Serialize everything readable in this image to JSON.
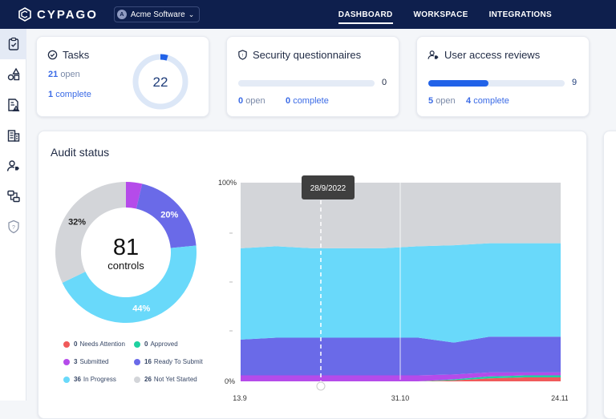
{
  "app": {
    "brand": "CYPAGO",
    "org_initial": "A",
    "org_name": "Acme Software"
  },
  "nav": [
    {
      "label": "DASHBOARD",
      "active": true
    },
    {
      "label": "WORKSPACE",
      "active": false
    },
    {
      "label": "INTEGRATIONS",
      "active": false
    }
  ],
  "sidebar": [
    "clipboard-check-icon",
    "shapes-icon",
    "document-alert-icon",
    "building-list-icon",
    "user-review-icon",
    "workflow-icon",
    "shield-question-icon"
  ],
  "tasks": {
    "title": "Tasks",
    "open_num": "21",
    "open_lbl": "open",
    "complete_num": "1",
    "complete_lbl": "complete",
    "total": "22",
    "complete_fraction": 0.045
  },
  "questionnaires": {
    "title": "Security questionnaires",
    "count": "0",
    "open_num": "0",
    "open_lbl": "open",
    "complete_num": "0",
    "complete_lbl": "complete",
    "progress": 0
  },
  "reviews": {
    "title": "User access reviews",
    "count": "9",
    "open_num": "5",
    "open_lbl": "open",
    "complete_num": "4",
    "complete_lbl": "complete",
    "progress": 0.44
  },
  "audit": {
    "title": "Audit status",
    "total": "81",
    "total_lbl": "controls",
    "donut": [
      {
        "name": "Submitted",
        "value": 3,
        "color": "#b54bea",
        "label": ""
      },
      {
        "name": "Ready To Submit",
        "value": 16,
        "color": "#6a6ae8",
        "label": "20%"
      },
      {
        "name": "In Progress",
        "value": 36,
        "color": "#69d9fa",
        "label": "44%"
      },
      {
        "name": "Not Yet Started",
        "value": 26,
        "color": "#d3d5d9",
        "label": "32%"
      }
    ],
    "legend": [
      {
        "num": "0",
        "name": "Needs Attention",
        "color": "#f05a5a"
      },
      {
        "num": "0",
        "name": "Approved",
        "color": "#1fd1a0"
      },
      {
        "num": "3",
        "name": "Submitted",
        "color": "#b54bea"
      },
      {
        "num": "16",
        "name": "Ready To Submit",
        "color": "#6a6ae8"
      },
      {
        "num": "36",
        "name": "In Progress",
        "color": "#69d9fa"
      },
      {
        "num": "26",
        "name": "Not Yet Started",
        "color": "#d3d5d9"
      }
    ]
  },
  "chart_data": {
    "type": "area",
    "stacked": true,
    "normalized_percent": true,
    "ylim": [
      0,
      100
    ],
    "ytick_labels": [
      "100%",
      "0%"
    ],
    "xtick_labels": [
      "13.9",
      "31.10",
      "24.11"
    ],
    "tooltip": "28/9/2022",
    "x": [
      "13.9",
      "20.9",
      "28.9",
      "5.10",
      "13.10",
      "21.10",
      "31.10",
      "8.11",
      "16.11",
      "24.11"
    ],
    "series": [
      {
        "name": "Needs Attention",
        "color": "#f05a5a",
        "values": [
          0,
          0,
          0,
          0,
          0,
          0,
          0.5,
          1.5,
          2,
          2
        ]
      },
      {
        "name": "Approved",
        "color": "#1fd1a0",
        "values": [
          0,
          0,
          0,
          0,
          0,
          0,
          0.5,
          1,
          1,
          1
        ]
      },
      {
        "name": "Submitted",
        "color": "#b54bea",
        "values": [
          3,
          3,
          3,
          3,
          3,
          3,
          2.5,
          2,
          1.5,
          1.5
        ]
      },
      {
        "name": "Ready To Submit",
        "color": "#6a6ae8",
        "values": [
          18,
          19,
          19,
          19,
          19,
          19,
          16,
          18,
          18,
          18
        ]
      },
      {
        "name": "In Progress",
        "color": "#69d9fa",
        "values": [
          46,
          46,
          45,
          45,
          45,
          46,
          49,
          47,
          47,
          47
        ]
      },
      {
        "name": "Not Yet Started",
        "color": "#d3d5d9",
        "values": [
          33,
          32,
          33,
          33,
          33,
          32,
          31.5,
          30.5,
          30.5,
          30.5
        ]
      }
    ]
  }
}
